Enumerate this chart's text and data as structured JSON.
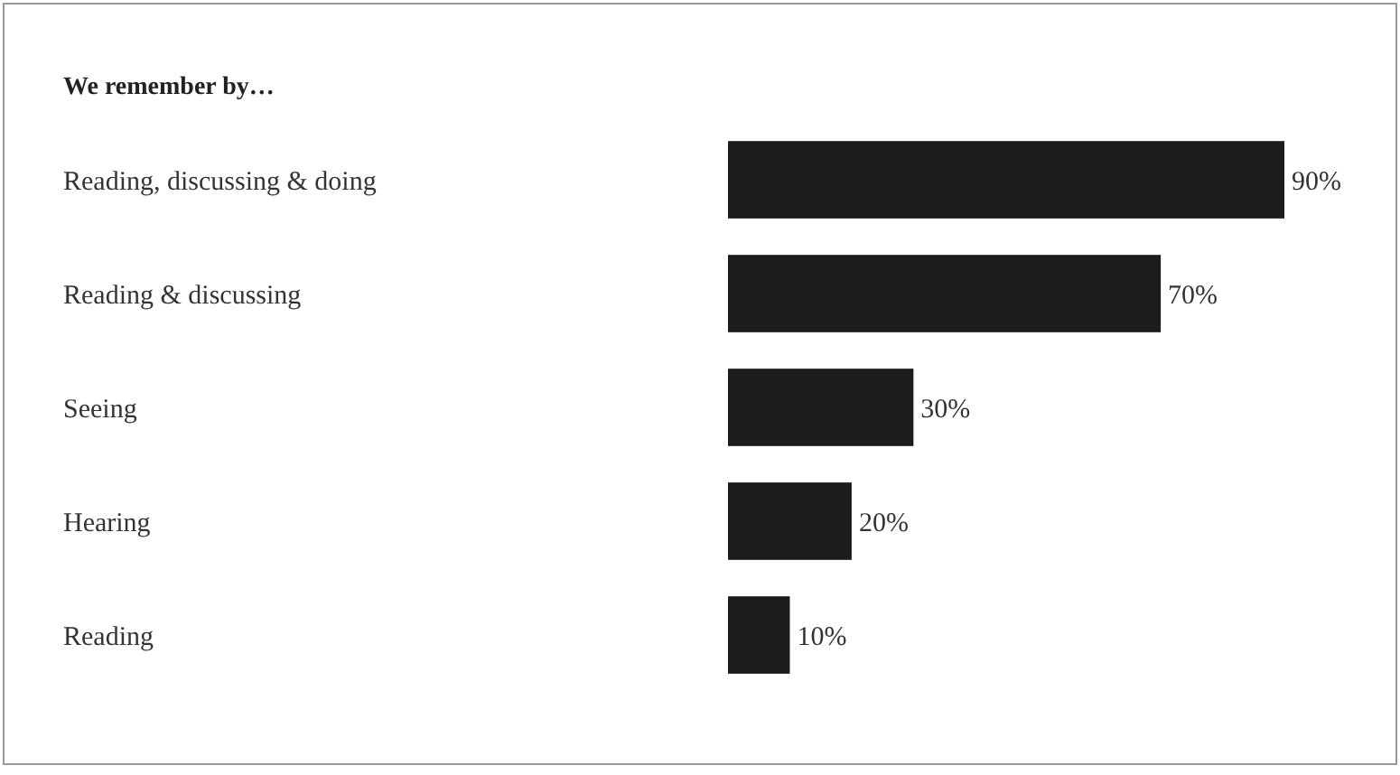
{
  "chart_data": {
    "type": "bar",
    "orientation": "horizontal",
    "title": "We remember by…",
    "categories": [
      "Reading, discussing & doing",
      "Reading & discussing",
      "Seeing",
      "Hearing",
      "Reading"
    ],
    "values": [
      90,
      70,
      30,
      20,
      10
    ],
    "color": "#1c1c1c",
    "value_labels": [
      "90%",
      "70%",
      "30%",
      "20%",
      "10%"
    ]
  }
}
